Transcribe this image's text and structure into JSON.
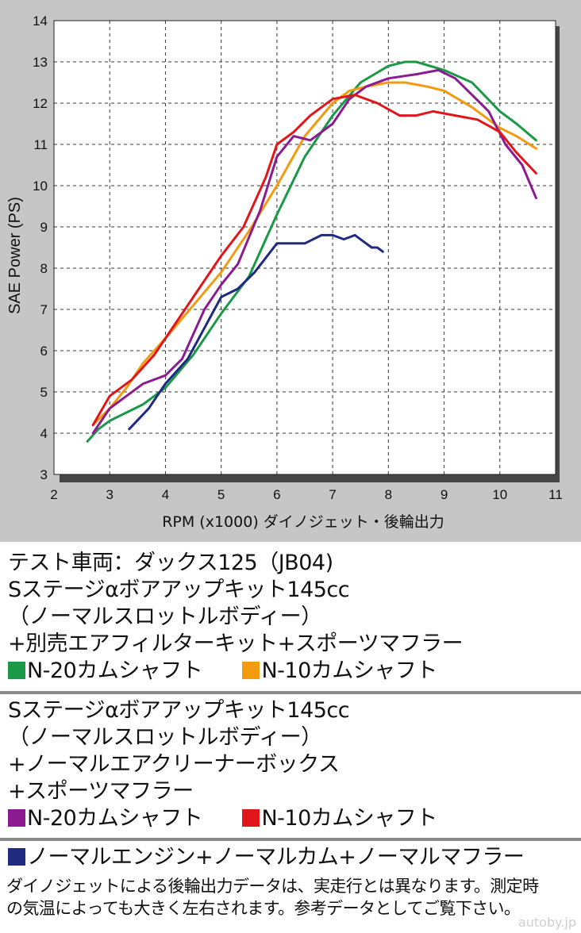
{
  "chart_data": {
    "type": "line",
    "xlabel": "RPM (x1000) ダイノジェット・後輪出力",
    "ylabel": "SAE Power (PS)",
    "xlim": [
      2,
      11
    ],
    "ylim": [
      3,
      14
    ],
    "xticks": [
      2,
      3,
      4,
      5,
      6,
      7,
      8,
      9,
      10,
      11
    ],
    "yticks": [
      3,
      4,
      5,
      6,
      7,
      8,
      9,
      10,
      11,
      12,
      13,
      14
    ],
    "grid": true,
    "series": [
      {
        "name": "N-20カムシャフト (145cc + 別売エアフィルターキット)",
        "color": "#1a9a46",
        "x": [
          2.6,
          2.8,
          3.0,
          3.3,
          3.6,
          4.0,
          4.5,
          5.0,
          5.5,
          6.0,
          6.5,
          7.0,
          7.5,
          8.0,
          8.3,
          8.5,
          9.0,
          9.5,
          10.0,
          10.3,
          10.65
        ],
        "y": [
          3.8,
          4.1,
          4.3,
          4.5,
          4.7,
          5.1,
          5.9,
          6.9,
          7.8,
          9.3,
          10.7,
          11.7,
          12.5,
          12.9,
          13.0,
          13.0,
          12.8,
          12.5,
          11.8,
          11.5,
          11.1
        ]
      },
      {
        "name": "N-10カムシャフト (145cc + 別売エアフィルターキット)",
        "color": "#f29b11",
        "x": [
          2.7,
          3.0,
          3.3,
          3.6,
          4.0,
          4.5,
          5.0,
          5.5,
          6.0,
          6.5,
          7.0,
          7.3,
          7.6,
          8.0,
          8.3,
          8.7,
          9.0,
          9.5,
          10.0,
          10.3,
          10.65
        ],
        "y": [
          4.2,
          4.6,
          5.1,
          5.7,
          6.3,
          7.1,
          7.9,
          8.9,
          10.0,
          11.2,
          12.0,
          12.3,
          12.4,
          12.5,
          12.5,
          12.4,
          12.3,
          11.9,
          11.4,
          11.2,
          10.9
        ]
      },
      {
        "name": "N-20カムシャフト (145cc + ノーマルエアクリーナーボックス)",
        "color": "#8c1a91",
        "x": [
          2.7,
          3.0,
          3.3,
          3.6,
          4.0,
          4.3,
          4.7,
          5.0,
          5.3,
          5.7,
          6.0,
          6.3,
          6.6,
          7.0,
          7.3,
          7.6,
          8.0,
          8.5,
          8.9,
          9.2,
          9.5,
          9.8,
          10.1,
          10.4,
          10.65
        ],
        "y": [
          4.0,
          4.6,
          4.9,
          5.2,
          5.4,
          5.8,
          7.0,
          7.6,
          8.1,
          9.4,
          10.7,
          11.2,
          11.1,
          11.5,
          12.1,
          12.4,
          12.6,
          12.7,
          12.8,
          12.6,
          12.2,
          11.8,
          11.0,
          10.5,
          9.7
        ]
      },
      {
        "name": "N-10カムシャフト (145cc + ノーマルエアクリーナーボックス)",
        "color": "#e0161b",
        "x": [
          2.7,
          3.0,
          3.4,
          3.8,
          4.2,
          4.6,
          5.0,
          5.4,
          5.8,
          6.0,
          6.3,
          6.6,
          7.0,
          7.4,
          7.8,
          8.2,
          8.5,
          8.8,
          9.2,
          9.6,
          10.0,
          10.3,
          10.65
        ],
        "y": [
          4.2,
          4.9,
          5.3,
          5.9,
          6.7,
          7.5,
          8.3,
          9.0,
          10.2,
          11.0,
          11.3,
          11.7,
          12.1,
          12.2,
          12.0,
          11.7,
          11.7,
          11.8,
          11.7,
          11.6,
          11.3,
          10.8,
          10.3
        ]
      },
      {
        "name": "ノーマルエンジン+ノーマルカム+ノーマルマフラー",
        "color": "#1f2a80",
        "x": [
          3.35,
          3.7,
          4.0,
          4.4,
          4.8,
          5.0,
          5.3,
          5.6,
          6.0,
          6.2,
          6.5,
          6.8,
          7.0,
          7.2,
          7.4,
          7.6,
          7.7,
          7.8,
          7.9
        ],
        "y": [
          4.1,
          4.6,
          5.2,
          5.8,
          6.8,
          7.3,
          7.5,
          7.9,
          8.6,
          8.6,
          8.6,
          8.8,
          8.8,
          8.7,
          8.8,
          8.6,
          8.5,
          8.5,
          8.4
        ]
      }
    ]
  },
  "legend": {
    "vehicle": "テスト車両：ダックス125（JB04)",
    "group1": {
      "line1": "Sステージαボアアップキット145cc",
      "line2": "（ノーマルスロットルボディー）",
      "line3": "+別売エアフィルターキット+スポーツマフラー",
      "item1": "N-20カムシャフト",
      "item2": "N-10カムシャフト",
      "color1": "#1a9a46",
      "color2": "#f29b11"
    },
    "group2": {
      "line1": "Sステージαボアアップキット145cc",
      "line2": "（ノーマルスロットルボディー）",
      "line3": "+ノーマルエアクリーナーボックス",
      "line4": "+スポーツマフラー",
      "item1": "N-20カムシャフト",
      "item2": "N-10カムシャフト",
      "color1": "#8c1a91",
      "color2": "#e0161b"
    },
    "group3": {
      "item": "ノーマルエンジン+ノーマルカム+ノーマルマフラー",
      "color": "#1f2a80"
    },
    "note_line1": "ダイノジェットによる後輪出力データは、実走行とは異なります。測定時",
    "note_line2": "の気温によっても大きく左右されます。参考データとしてご覧下さい。"
  },
  "watermark": "autoby.jp"
}
